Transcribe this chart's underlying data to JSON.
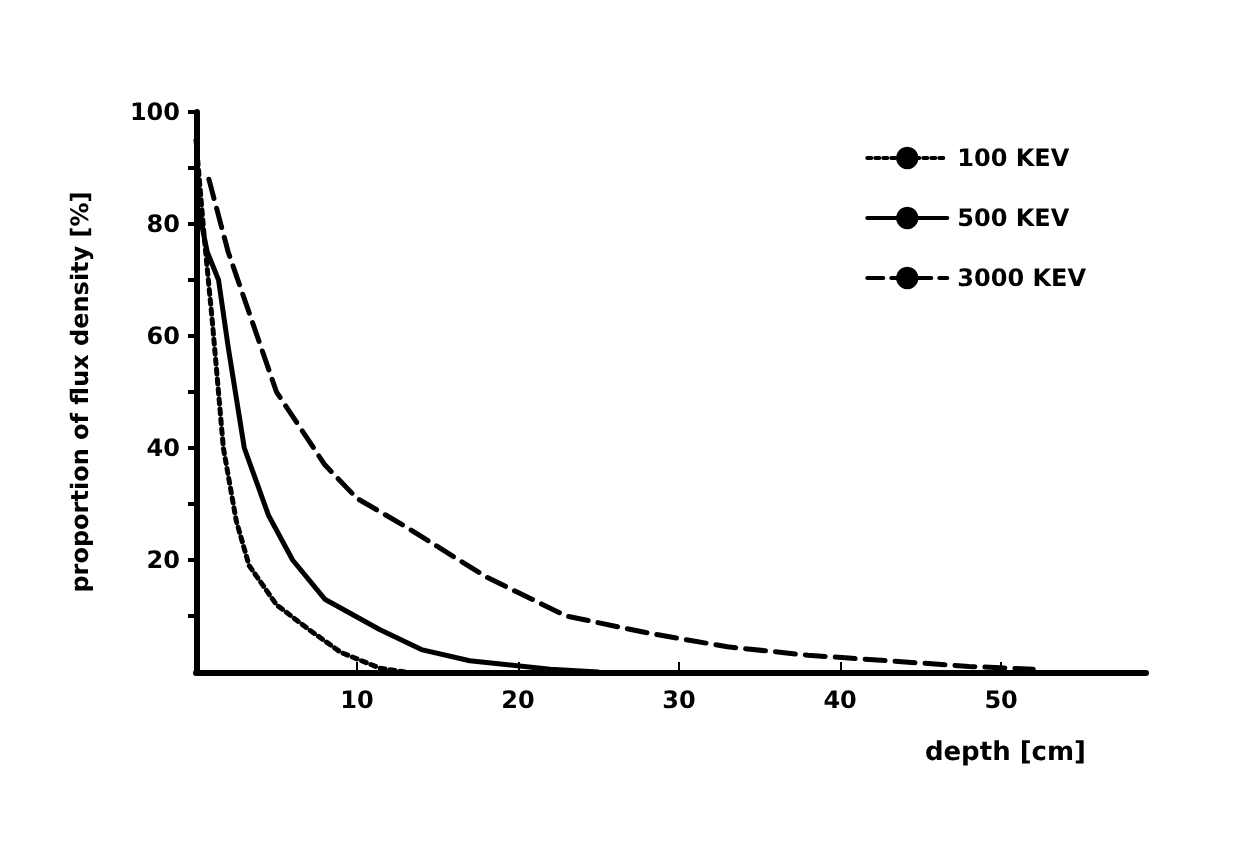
{
  "chart_data": {
    "type": "line",
    "xlabel": "depth [cm]",
    "ylabel": "proportion of flux density [%]",
    "xlim": [
      0,
      59
    ],
    "ylim": [
      0,
      100
    ],
    "xticks": [
      10,
      20,
      30,
      40,
      50
    ],
    "yticks": [
      {
        "value": 10,
        "label": null
      },
      20,
      {
        "value": 30,
        "label": null
      },
      40,
      {
        "value": 50,
        "label": null
      },
      60,
      {
        "value": 70,
        "label": null
      },
      80,
      {
        "value": 90,
        "label": null
      },
      100
    ],
    "grid": false,
    "legend": "top right",
    "marker": "none",
    "series": [
      {
        "name": "100 KEV",
        "color": "#000000",
        "line_style": "dotted",
        "x": [
          0,
          0.5,
          1,
          1.7,
          2.5,
          3.3,
          5,
          7,
          9,
          11.4,
          13
        ],
        "values": [
          95,
          78,
          63,
          40,
          27,
          19,
          12,
          7.6,
          3.5,
          0.7,
          0
        ]
      },
      {
        "name": "500 KEV",
        "color": "#000000",
        "line_style": "solid",
        "x": [
          0.2,
          0.7,
          1.4,
          2,
          3,
          4.5,
          6,
          8,
          11.4,
          14,
          17,
          22,
          25
        ],
        "values": [
          82,
          75,
          70,
          58,
          40,
          28,
          20,
          13,
          7.6,
          4,
          2,
          0.5,
          0
        ]
      },
      {
        "name": "3000 KEV",
        "color": "#000000",
        "line_style": "dashed",
        "x": [
          0.8,
          2,
          5,
          8,
          10,
          13,
          18,
          23,
          28,
          33,
          38,
          43,
          48,
          52
        ],
        "values": [
          88,
          75,
          50,
          37,
          31,
          26,
          17,
          10,
          7,
          4.5,
          3,
          2,
          1,
          0.5
        ]
      }
    ]
  }
}
